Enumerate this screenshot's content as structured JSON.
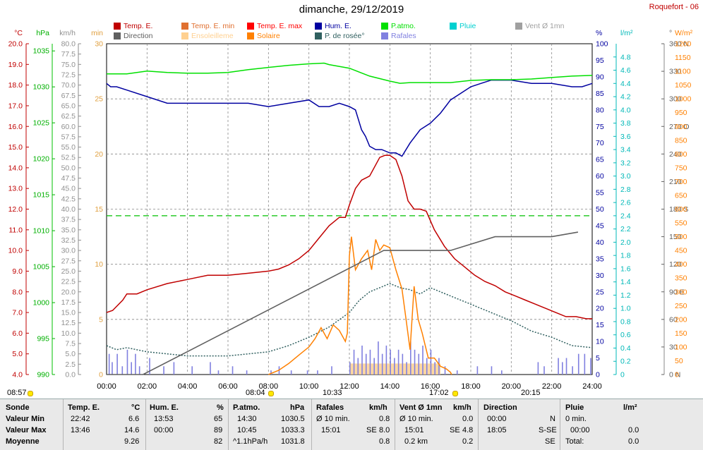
{
  "title": "dimanche, 29/12/2019",
  "station": "Roquefort - 06",
  "legend": [
    {
      "label": "Temp. E.",
      "color": "#c00000"
    },
    {
      "label": "Temp. E. min",
      "color": "#e07030"
    },
    {
      "label": "Temp. E. max",
      "color": "#ff0000"
    },
    {
      "label": "Hum. E.",
      "color": "#0000a0"
    },
    {
      "label": "P.atmo.",
      "color": "#00e000"
    },
    {
      "label": "Pluie",
      "color": "#00d0d0"
    },
    {
      "label": "Vent Ø 1mn",
      "color": "#a0a0a0"
    },
    {
      "label": "Direction",
      "color": "#606060"
    },
    {
      "label": "Ensoleilleme",
      "color": "#ffd090"
    },
    {
      "label": "Solaire",
      "color": "#ff8000"
    },
    {
      "label": "P. de rosée°",
      "color": "#306060"
    },
    {
      "label": "Rafales",
      "color": "#8080e0"
    }
  ],
  "axis_units": {
    "temp": "°C",
    "press": "hPa",
    "wind": "km/h",
    "sun": "min",
    "hum": "%",
    "rain": "l/m²",
    "dir": "°",
    "solar": "W/m²"
  },
  "events": [
    {
      "label": "08:57"
    },
    {
      "label": "08:04"
    },
    {
      "label": "10:33"
    },
    {
      "label": "17:02"
    },
    {
      "label": "20:15"
    }
  ],
  "stats": {
    "headers": {
      "sonde": "Sonde",
      "temp": "Temp. E.",
      "temp_unit": "°C",
      "hum": "Hum. E.",
      "hum_unit": "%",
      "press": "P.atmo.",
      "press_unit": "hPa",
      "gust": "Rafales",
      "gust_unit": "km/h",
      "wind": "Vent Ø 1mn",
      "wind_unit": "km/h",
      "dir": "Direction",
      "rain": "Pluie",
      "rain_unit": "l/m²"
    },
    "row_labels": {
      "min": "Valeur Min",
      "max": "Valeur Max",
      "avg": "Moyenne"
    },
    "temp": {
      "min_time": "22:42",
      "min_val": "6.6",
      "max_time": "13:46",
      "max_val": "14.6",
      "avg": "9.26"
    },
    "hum": {
      "min_time": "13:53",
      "min_val": "65",
      "max_time": "00:00",
      "max_val": "89",
      "avg": "82"
    },
    "press": {
      "min_time": "14:30",
      "min_val": "1030.5",
      "max_time": "10:45",
      "max_val": "1033.3",
      "avg_label": "^1.1hPa/h",
      "avg": "1031.8"
    },
    "gust": {
      "min_label": "Ø 10 min.",
      "min_val": "0.8",
      "max_time": "15:01",
      "max_dir": "SE",
      "max_val": "8.0",
      "avg": "0.8"
    },
    "wind": {
      "min_label": "Ø 10 min.",
      "min_val": "0.0",
      "max_time": "15:01",
      "max_dir": "SE",
      "max_val": "4.8",
      "avg_label": "0.2 km",
      "avg": "0.2"
    },
    "dir": {
      "min_time": "00:00",
      "min_val": "N",
      "max_time": "18:05",
      "max_val": "S-SE",
      "avg": "SE"
    },
    "rain": {
      "min_label": "0 min.",
      "max_time": "00:00",
      "max_val": "0.0",
      "avg_label": "Total:",
      "avg": "0.0"
    }
  },
  "chart_data": {
    "type": "line",
    "x_label_hours": [
      "00:00",
      "02:00",
      "04:00",
      "06:00",
      "08:00",
      "10:00",
      "12:00",
      "14:00",
      "16:00",
      "18:00",
      "20:00",
      "22:00",
      "24:00"
    ],
    "axes": {
      "temp": {
        "unit": "°C",
        "range": [
          4.0,
          20.0
        ],
        "ticks": [
          "20.0",
          "19.0",
          "18.0",
          "17.0",
          "16.0",
          "15.0",
          "14.0",
          "13.0",
          "12.0",
          "11.0",
          "10.0",
          "9.0",
          "8.0",
          "7.0",
          "6.0",
          "5.0",
          "4.0"
        ]
      },
      "press": {
        "unit": "hPa",
        "range": [
          990,
          1036
        ],
        "ticks": [
          "1035",
          "1030",
          "1025",
          "1020",
          "1015",
          "1010",
          "1005",
          "1000",
          "995",
          "990"
        ]
      },
      "wind": {
        "unit": "km/h",
        "range": [
          0,
          80
        ],
        "ticks": [
          "80.0",
          "77.5",
          "75.0",
          "72.5",
          "70.0",
          "67.5",
          "65.0",
          "62.5",
          "60.0",
          "57.5",
          "55.0",
          "52.5",
          "50.0",
          "47.5",
          "45.0",
          "42.5",
          "40.0",
          "37.5",
          "35.0",
          "32.5",
          "30.0",
          "27.5",
          "25.0",
          "22.5",
          "20.0",
          "17.5",
          "15.0",
          "12.5",
          "10.0",
          "7.5",
          "5.0",
          "2.5",
          "0.0"
        ]
      },
      "sun": {
        "unit": "min",
        "range": [
          0,
          30
        ],
        "ticks": [
          "30",
          "25",
          "20",
          "15",
          "10",
          "5",
          "0"
        ]
      },
      "hum": {
        "unit": "%",
        "range": [
          0,
          100
        ],
        "ticks": [
          "100",
          "95",
          "90",
          "85",
          "80",
          "75",
          "70",
          "65",
          "60",
          "55",
          "50",
          "45",
          "40",
          "35",
          "30",
          "25",
          "20",
          "15",
          "10",
          "5",
          "0"
        ]
      },
      "rain": {
        "unit": "l/m²",
        "range": [
          0,
          5
        ],
        "ticks": [
          "4.8",
          "4.6",
          "4.4",
          "4.2",
          "4.0",
          "3.8",
          "3.6",
          "3.4",
          "3.2",
          "3.0",
          "2.8",
          "2.6",
          "2.4",
          "2.2",
          "2.0",
          "1.8",
          "1.6",
          "1.4",
          "1.2",
          "1.0",
          "0.8",
          "0.6",
          "0.4",
          "0.2",
          "0"
        ]
      },
      "dir": {
        "unit": "°",
        "range": [
          0,
          360
        ],
        "ticks": [
          "360 N",
          "330",
          "300",
          "270 O",
          "240",
          "210",
          "180 S",
          "150",
          "120",
          "90 E",
          "60",
          "30",
          "0 N"
        ]
      },
      "solar": {
        "unit": "W/m²",
        "range": [
          0,
          1200
        ],
        "ticks": [
          "1200",
          "1150",
          "1100",
          "1050",
          "1000",
          "950",
          "900",
          "850",
          "800",
          "750",
          "700",
          "650",
          "600",
          "550",
          "500",
          "450",
          "400",
          "350",
          "300",
          "250",
          "200",
          "150",
          "100",
          "50",
          "0"
        ]
      }
    },
    "series": [
      {
        "name": "Temp. E.",
        "axis": "temp",
        "color": "#c00000",
        "x": [
          0,
          0.3,
          0.8,
          1.0,
          1.5,
          2.0,
          3.0,
          4.0,
          5.0,
          6.0,
          7.0,
          8.0,
          8.5,
          9.0,
          9.5,
          10.0,
          10.5,
          11.0,
          11.5,
          11.8,
          12.0,
          12.3,
          12.6,
          13.0,
          13.5,
          13.75,
          14.0,
          14.3,
          14.6,
          14.9,
          15.2,
          15.5,
          15.8,
          16.2,
          16.7,
          17.2,
          17.7,
          18.2,
          18.7,
          19.2,
          19.7,
          20.2,
          20.7,
          21.2,
          21.7,
          22.2,
          22.7,
          23.2,
          23.7,
          24.0
        ],
        "y": [
          7.0,
          7.1,
          7.6,
          7.9,
          7.9,
          8.1,
          8.4,
          8.6,
          8.8,
          8.8,
          8.9,
          9.0,
          9.1,
          9.3,
          9.6,
          10.0,
          10.6,
          11.2,
          11.6,
          11.6,
          12.2,
          13.0,
          13.4,
          13.6,
          14.5,
          14.6,
          14.6,
          14.4,
          13.6,
          12.4,
          12.0,
          12.0,
          11.9,
          11.0,
          10.2,
          9.6,
          9.2,
          8.8,
          8.5,
          8.3,
          8.0,
          7.8,
          7.6,
          7.4,
          7.2,
          7.0,
          6.8,
          6.8,
          6.7,
          6.7
        ]
      },
      {
        "name": "Hum. E.",
        "axis": "hum",
        "color": "#0000a0",
        "x": [
          0,
          0.2,
          0.5,
          1.0,
          2.0,
          3.0,
          4.0,
          5.0,
          6.0,
          7.0,
          8.0,
          9.0,
          10.0,
          10.5,
          11.0,
          11.5,
          12.0,
          12.3,
          12.6,
          12.8,
          13.0,
          13.3,
          13.6,
          14.0,
          14.3,
          14.6,
          15.0,
          15.5,
          16.0,
          16.5,
          17.0,
          17.5,
          18.0,
          18.5,
          19.0,
          20.0,
          21.0,
          22.0,
          23.0,
          23.5,
          24.0
        ],
        "y": [
          88,
          87,
          87,
          86,
          84,
          82,
          82,
          82,
          82,
          82,
          81,
          82,
          83,
          81,
          81,
          82,
          81,
          80,
          74,
          72,
          69,
          68,
          68,
          67,
          67,
          66,
          70,
          74,
          76,
          79,
          83,
          85,
          87,
          88,
          89,
          89,
          88,
          88,
          87,
          87,
          88
        ]
      },
      {
        "name": "P.atmo.",
        "axis": "press",
        "color": "#00e000",
        "x": [
          0,
          1,
          2,
          3,
          4,
          5,
          6,
          7,
          8,
          9,
          10,
          10.75,
          11,
          12,
          13,
          14,
          14.5,
          15,
          16,
          17,
          18,
          19,
          20,
          21,
          22,
          23,
          24
        ],
        "y": [
          1031.8,
          1031.8,
          1032.2,
          1032.0,
          1031.9,
          1031.9,
          1032.0,
          1032.4,
          1032.7,
          1033.0,
          1033.2,
          1033.3,
          1033.1,
          1032.6,
          1031.5,
          1030.8,
          1030.5,
          1030.6,
          1030.6,
          1030.6,
          1030.9,
          1031.0,
          1031.0,
          1031.1,
          1031.3,
          1031.5,
          1031.6
        ]
      },
      {
        "name": "P. de rosée°",
        "axis": "temp",
        "color": "#306060",
        "x": [
          0,
          0.5,
          1.0,
          2.0,
          3.0,
          4.0,
          5.0,
          6.0,
          7.0,
          8.0,
          9.0,
          10.0,
          11.0,
          12.0,
          12.5,
          13.0,
          13.5,
          14.0,
          14.5,
          15.0,
          15.5,
          16.0,
          16.5,
          17.0,
          18.0,
          19.0,
          20.0,
          21.0,
          22.0,
          23.0,
          24.0
        ],
        "y": [
          5.4,
          5.2,
          5.3,
          5.1,
          5.0,
          4.9,
          4.9,
          4.9,
          5.0,
          5.1,
          5.4,
          5.8,
          6.3,
          7.0,
          7.6,
          8.0,
          8.2,
          8.4,
          8.2,
          8.1,
          7.9,
          8.2,
          8.0,
          7.8,
          7.4,
          7.0,
          6.6,
          6.1,
          5.8,
          5.4,
          5.3
        ]
      },
      {
        "name": "Solaire",
        "axis": "solar",
        "color": "#ff8000",
        "x": [
          8.0,
          8.5,
          9.0,
          9.5,
          10.0,
          10.3,
          10.6,
          10.9,
          11.2,
          11.5,
          11.8,
          11.9,
          12.0,
          12.1,
          12.3,
          12.6,
          12.9,
          13.1,
          13.3,
          13.5,
          13.7,
          14.0,
          14.3,
          14.6,
          14.8,
          15.0,
          15.2,
          15.4,
          15.6,
          15.9,
          16.2,
          16.5,
          16.8,
          17.0,
          17.05
        ],
        "y": [
          0,
          15,
          40,
          70,
          100,
          130,
          170,
          130,
          180,
          160,
          120,
          150,
          430,
          500,
          380,
          420,
          450,
          380,
          490,
          450,
          470,
          460,
          380,
          310,
          200,
          90,
          320,
          200,
          150,
          60,
          60,
          30,
          20,
          8,
          0
        ]
      },
      {
        "name": "Direction",
        "axis": "dir",
        "color": "#606060",
        "x": [
          0.0,
          1.8,
          13.7,
          17.0,
          19.2,
          20.7,
          22.0,
          23.3
        ],
        "y": [
          0,
          0,
          135,
          135,
          150,
          150,
          150,
          155
        ]
      }
    ],
    "rafales_bars": [
      {
        "x": 0.1,
        "y": 5
      },
      {
        "x": 0.25,
        "y": 3
      },
      {
        "x": 0.5,
        "y": 5
      },
      {
        "x": 0.75,
        "y": 2
      },
      {
        "x": 1.0,
        "y": 6
      },
      {
        "x": 1.2,
        "y": 3
      },
      {
        "x": 1.4,
        "y": 5
      },
      {
        "x": 1.6,
        "y": 2
      },
      {
        "x": 2.1,
        "y": 4
      },
      {
        "x": 2.8,
        "y": 2
      },
      {
        "x": 3.3,
        "y": 3
      },
      {
        "x": 4.2,
        "y": 2
      },
      {
        "x": 5.1,
        "y": 3
      },
      {
        "x": 5.5,
        "y": 1
      },
      {
        "x": 6.2,
        "y": 2
      },
      {
        "x": 6.9,
        "y": 1
      },
      {
        "x": 8.1,
        "y": 1
      },
      {
        "x": 8.5,
        "y": 2
      },
      {
        "x": 9.1,
        "y": 1
      },
      {
        "x": 9.9,
        "y": 1
      },
      {
        "x": 10.4,
        "y": 1
      },
      {
        "x": 11.1,
        "y": 2
      },
      {
        "x": 12.0,
        "y": 3
      },
      {
        "x": 12.2,
        "y": 6
      },
      {
        "x": 12.4,
        "y": 4
      },
      {
        "x": 12.6,
        "y": 7
      },
      {
        "x": 12.8,
        "y": 5
      },
      {
        "x": 13.0,
        "y": 6
      },
      {
        "x": 13.2,
        "y": 4
      },
      {
        "x": 13.4,
        "y": 8
      },
      {
        "x": 13.6,
        "y": 5
      },
      {
        "x": 13.8,
        "y": 7
      },
      {
        "x": 14.0,
        "y": 6
      },
      {
        "x": 14.2,
        "y": 4
      },
      {
        "x": 14.4,
        "y": 6
      },
      {
        "x": 14.6,
        "y": 5
      },
      {
        "x": 14.8,
        "y": 3
      },
      {
        "x": 15.0,
        "y": 8
      },
      {
        "x": 15.2,
        "y": 6
      },
      {
        "x": 15.4,
        "y": 5
      },
      {
        "x": 15.6,
        "y": 7
      },
      {
        "x": 15.8,
        "y": 4
      },
      {
        "x": 16.0,
        "y": 6
      },
      {
        "x": 16.2,
        "y": 3
      },
      {
        "x": 16.4,
        "y": 4
      },
      {
        "x": 16.7,
        "y": 2
      },
      {
        "x": 17.3,
        "y": 1
      },
      {
        "x": 18.3,
        "y": 2
      },
      {
        "x": 19.0,
        "y": 2
      },
      {
        "x": 19.5,
        "y": 1
      },
      {
        "x": 21.3,
        "y": 3
      },
      {
        "x": 21.6,
        "y": 2
      },
      {
        "x": 22.3,
        "y": 4
      },
      {
        "x": 22.5,
        "y": 3
      },
      {
        "x": 22.7,
        "y": 4
      },
      {
        "x": 23.0,
        "y": 2
      },
      {
        "x": 23.3,
        "y": 5
      },
      {
        "x": 23.6,
        "y": 5
      },
      {
        "x": 23.9,
        "y": 4
      }
    ],
    "sunshine_bars": [
      {
        "x": 12.0,
        "y": 1
      },
      {
        "x": 12.3,
        "y": 1
      },
      {
        "x": 12.6,
        "y": 1
      },
      {
        "x": 12.9,
        "y": 1
      },
      {
        "x": 13.2,
        "y": 1
      },
      {
        "x": 13.5,
        "y": 1
      },
      {
        "x": 13.8,
        "y": 1
      },
      {
        "x": 14.1,
        "y": 1
      },
      {
        "x": 14.4,
        "y": 1
      },
      {
        "x": 14.7,
        "y": 1
      },
      {
        "x": 15.0,
        "y": 1
      },
      {
        "x": 15.3,
        "y": 1
      },
      {
        "x": 15.6,
        "y": 1
      },
      {
        "x": 15.9,
        "y": 1
      },
      {
        "x": 16.2,
        "y": 1
      }
    ],
    "reference_line": {
      "axis": "hum",
      "value": 48,
      "color": "#00c000"
    }
  }
}
